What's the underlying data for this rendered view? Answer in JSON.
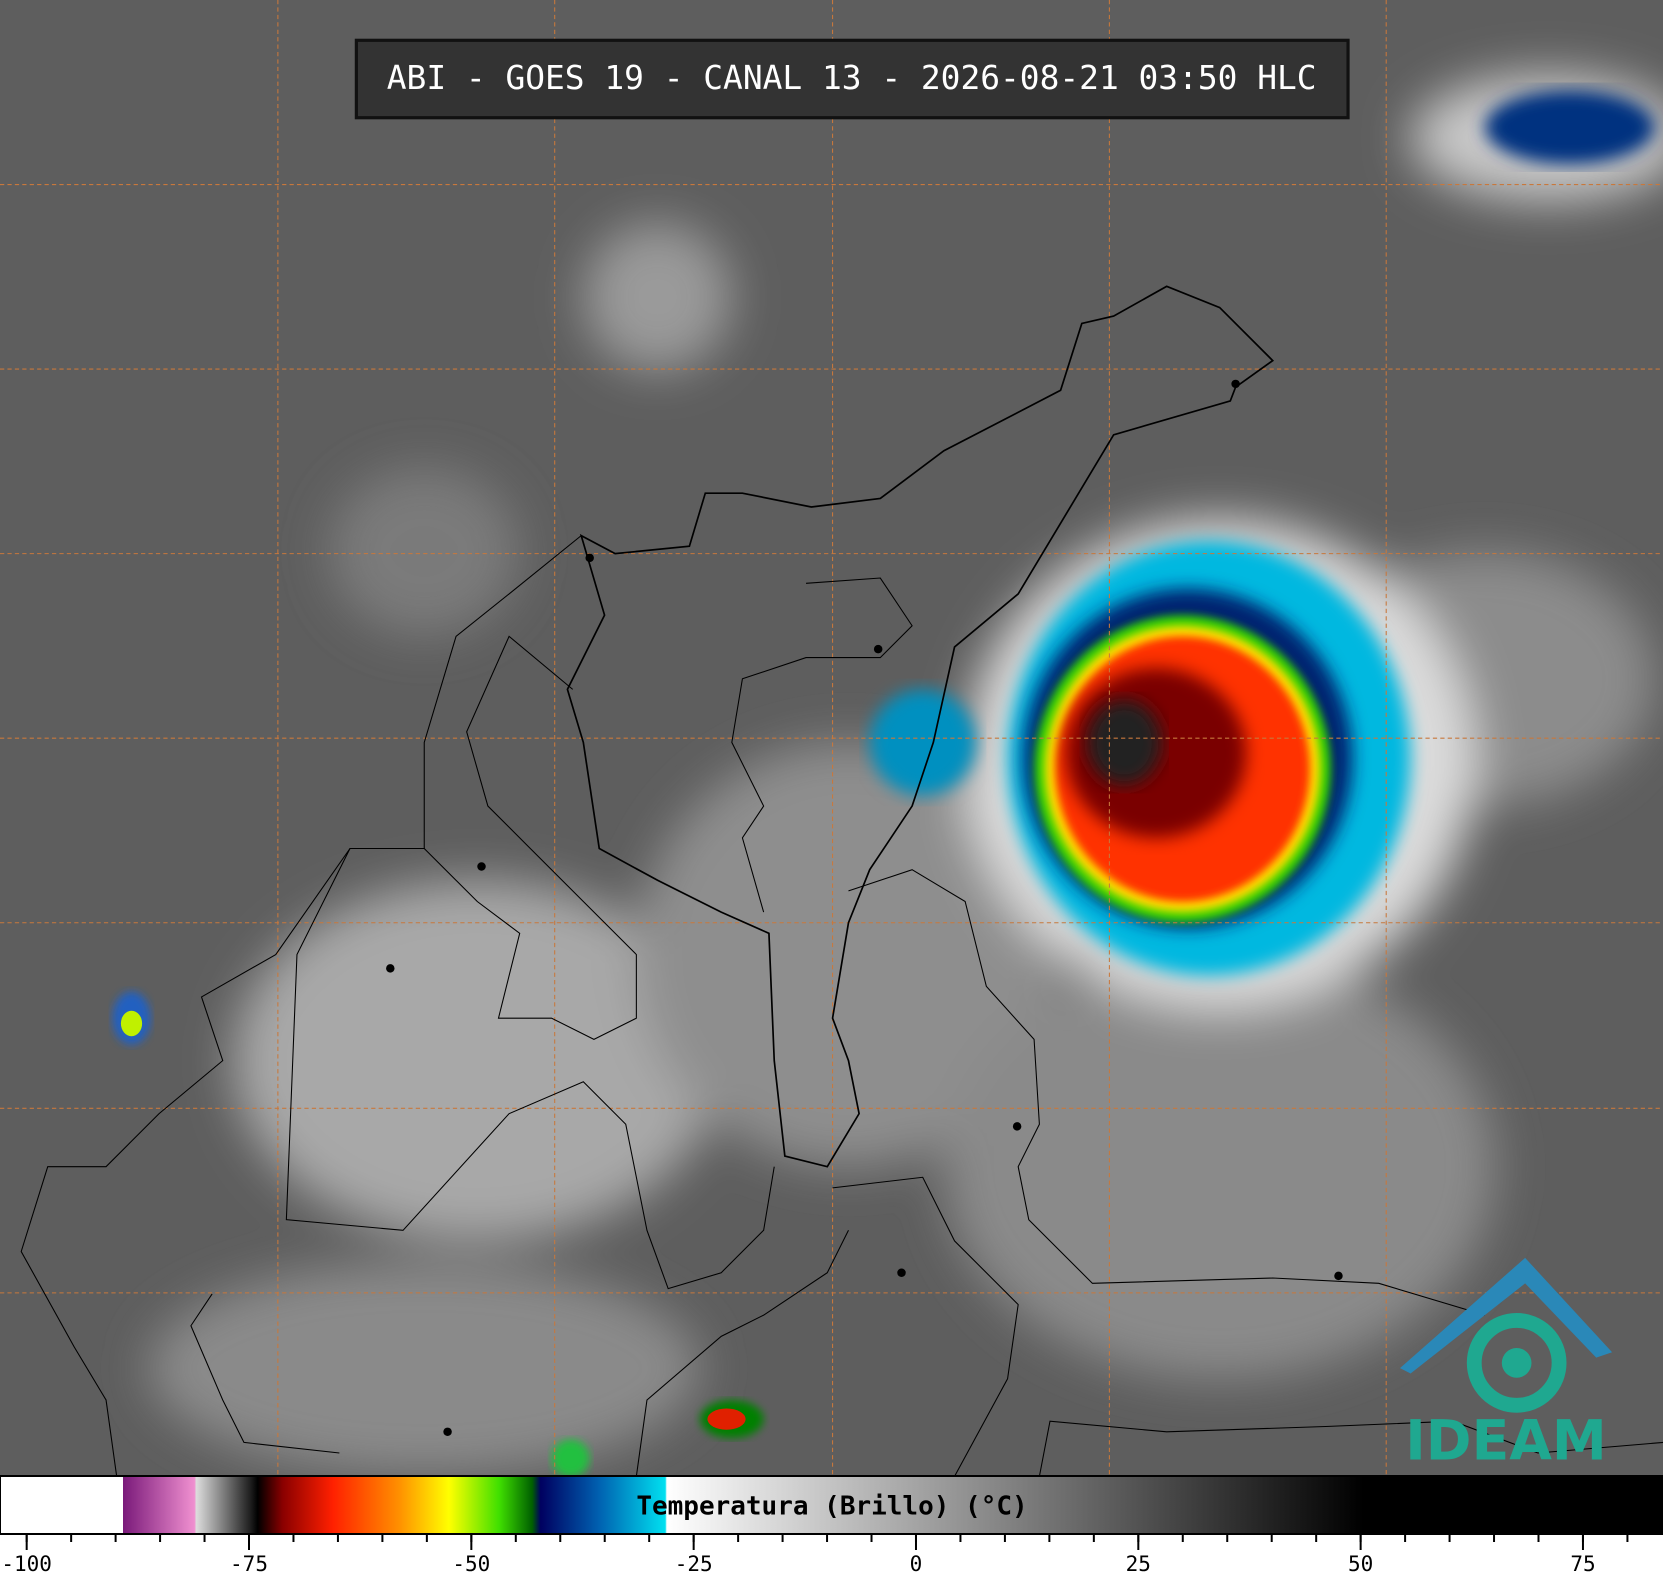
{
  "header": {
    "title": "ABI - GOES 19 - CANAL 13 - 2026-08-21 03:50 HLC"
  },
  "colorbar": {
    "label": "Temperatura (Brillo) (°C)",
    "lim": [
      -103,
      84
    ],
    "ticks": [
      -100,
      -75,
      -50,
      -25,
      0,
      25,
      50,
      75
    ]
  },
  "logo": {
    "text": "IDEAM"
  }
}
